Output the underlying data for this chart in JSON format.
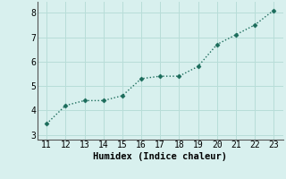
{
  "x": [
    11,
    12,
    13,
    14,
    15,
    16,
    17,
    18,
    19,
    20,
    21,
    22,
    23
  ],
  "y": [
    3.45,
    4.2,
    4.4,
    4.4,
    4.6,
    5.3,
    5.4,
    5.4,
    5.8,
    6.7,
    7.1,
    7.5,
    8.1
  ],
  "xlim": [
    10.5,
    23.5
  ],
  "ylim": [
    2.8,
    8.45
  ],
  "xticks": [
    11,
    12,
    13,
    14,
    15,
    16,
    17,
    18,
    19,
    20,
    21,
    22,
    23
  ],
  "yticks": [
    3,
    4,
    5,
    6,
    7,
    8
  ],
  "xlabel": "Humidex (Indice chaleur)",
  "line_color": "#1a6b5a",
  "bg_color": "#d8f0ee",
  "grid_color": "#b8ddd8",
  "marker": "D",
  "marker_size": 2.5,
  "linewidth": 1.0,
  "xlabel_fontsize": 7.5,
  "tick_fontsize": 7
}
